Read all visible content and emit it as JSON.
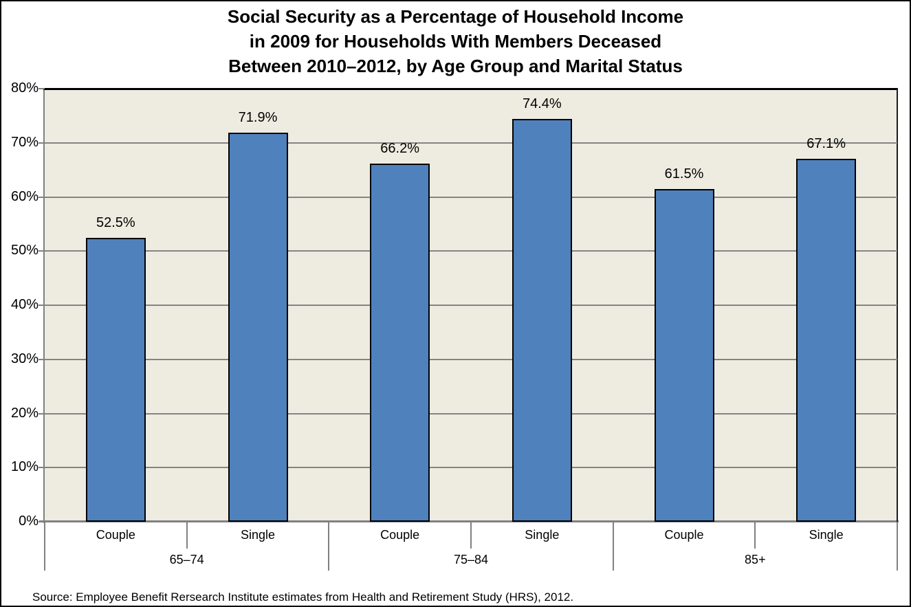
{
  "title": {
    "lines": [
      "Social Security as a Percentage of Household Income",
      "in 2009 for Households With Members Deceased",
      "Between 2010–2012, by Age Group and Marital Status"
    ]
  },
  "source_note": "Source: Employee Benefit Rersearch Institute estimates from Health and Retirement Study (HRS), 2012.",
  "chart_data": {
    "type": "bar",
    "title": "Social Security as a Percentage of Household Income in 2009 for Households With Members Deceased Between 2010–2012, by Age Group and Marital Status",
    "xlabel": "",
    "ylabel": "",
    "ylim": [
      0,
      80
    ],
    "ytick_interval": 10,
    "ytick_labels": [
      "0%",
      "10%",
      "20%",
      "30%",
      "40%",
      "50%",
      "60%",
      "70%",
      "80%"
    ],
    "grid": true,
    "legend": "none",
    "axis_levels": [
      "Marital Status",
      "Age Group"
    ],
    "groups": [
      {
        "label": "65–74",
        "bars": [
          {
            "category": "Couple",
            "value": 52.5,
            "data_label": "52.5%"
          },
          {
            "category": "Single",
            "value": 71.9,
            "data_label": "71.9%"
          }
        ]
      },
      {
        "label": "75–84",
        "bars": [
          {
            "category": "Couple",
            "value": 66.2,
            "data_label": "66.2%"
          },
          {
            "category": "Single",
            "value": 74.4,
            "data_label": "74.4%"
          }
        ]
      },
      {
        "label": "85+",
        "bars": [
          {
            "category": "Couple",
            "value": 61.5,
            "data_label": "61.5%"
          },
          {
            "category": "Single",
            "value": 67.1,
            "data_label": "67.1%"
          }
        ]
      }
    ],
    "colors": {
      "bar_fill": "#4F81BD",
      "bar_border": "#000000",
      "plot_background": "#EEECE1",
      "gridline": "#848484",
      "axis_line": "#808080",
      "text": "#000000"
    }
  }
}
